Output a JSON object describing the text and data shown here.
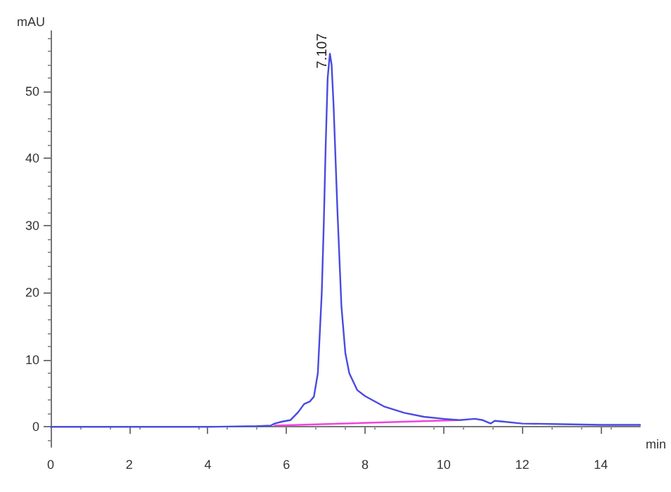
{
  "chart_data": {
    "type": "line",
    "ylabel": "mAU",
    "xlabel": "min",
    "xlim": [
      0,
      15
    ],
    "xticks": [
      0,
      2,
      4,
      6,
      8,
      10,
      12,
      14
    ],
    "ylim": [
      -3,
      59
    ],
    "yticks": [
      0,
      10,
      20,
      30,
      40,
      50
    ],
    "grid": false,
    "marker": "none",
    "line_style": "solid",
    "annotations": [
      {
        "text": "7.107",
        "x": 7.107,
        "y": 55.6
      }
    ],
    "series": [
      {
        "color": "#4a4ae0",
        "x": [
          0,
          1,
          2,
          3,
          4,
          5,
          5.2,
          5.6,
          5.7,
          5.9,
          6.1,
          6.3,
          6.45,
          6.6,
          6.7,
          6.8,
          6.9,
          6.95,
          7.0,
          7.05,
          7.107,
          7.15,
          7.2,
          7.3,
          7.4,
          7.5,
          7.6,
          7.8,
          8.0,
          8.5,
          9.0,
          9.5,
          10.0,
          10.4,
          10.8,
          11.0,
          11.2,
          11.3,
          11.5,
          12,
          13,
          14,
          15
        ],
        "values": [
          0,
          0,
          0,
          0,
          0,
          0.1,
          0.1,
          0.2,
          0.5,
          0.8,
          1.0,
          2.2,
          3.4,
          3.8,
          4.5,
          8,
          20,
          30,
          42,
          52,
          55.6,
          54,
          48,
          32,
          18,
          11,
          8,
          5.5,
          4.6,
          3.0,
          2.1,
          1.5,
          1.2,
          1.0,
          1.2,
          1.0,
          0.5,
          0.9,
          0.8,
          0.5,
          0.4,
          0.3,
          0.3
        ]
      },
      {
        "color": "#ee44dd",
        "x": [
          5.7,
          10.35
        ],
        "values": [
          0.2,
          1.0
        ]
      }
    ]
  }
}
